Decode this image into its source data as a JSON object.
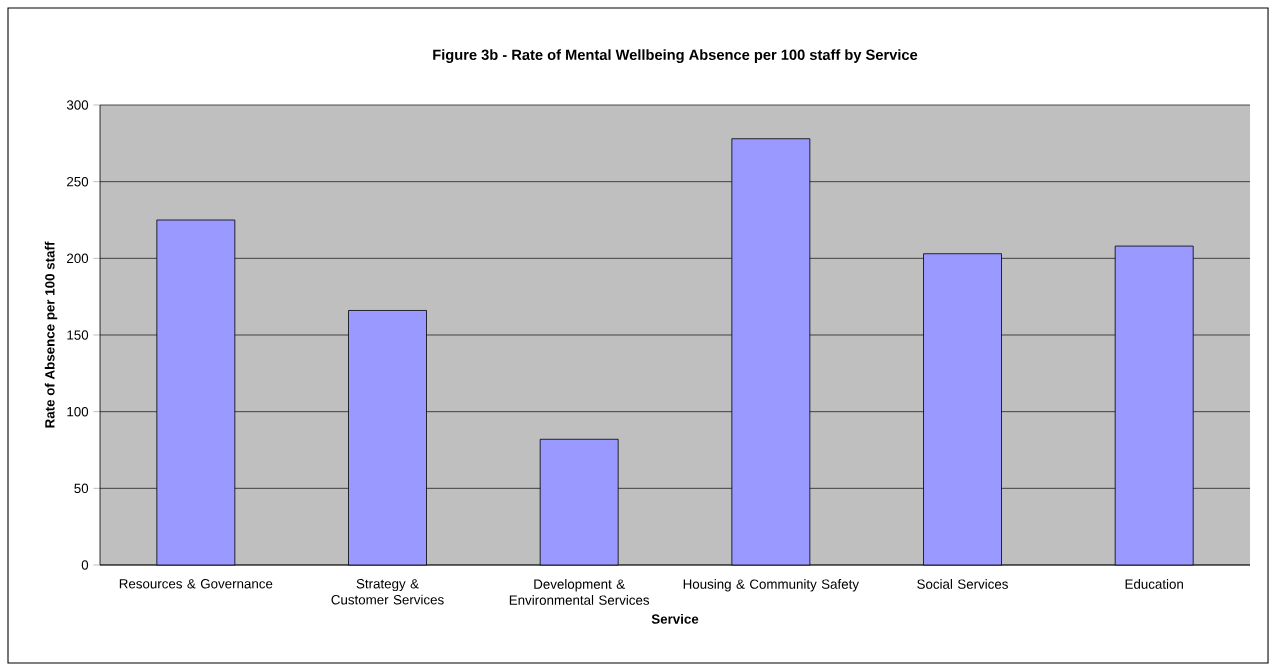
{
  "chart_data": {
    "type": "bar",
    "title": "Figure 3b - Rate of Mental Wellbeing Absence per 100 staff by Service",
    "xlabel": "Service",
    "ylabel": "Rate of Absence per 100 staff",
    "categories": [
      "Resources & Governance",
      "Strategy & Customer Services",
      "Development & Environmental Services",
      "Housing & Community Safety",
      "Social Services",
      "Education"
    ],
    "values": [
      225,
      166,
      82,
      278,
      203,
      208
    ],
    "color": "#9999ff",
    "ylim": [
      0,
      300
    ],
    "yticks": [
      0,
      50,
      100,
      150,
      200,
      250,
      300
    ],
    "grid": "y"
  }
}
